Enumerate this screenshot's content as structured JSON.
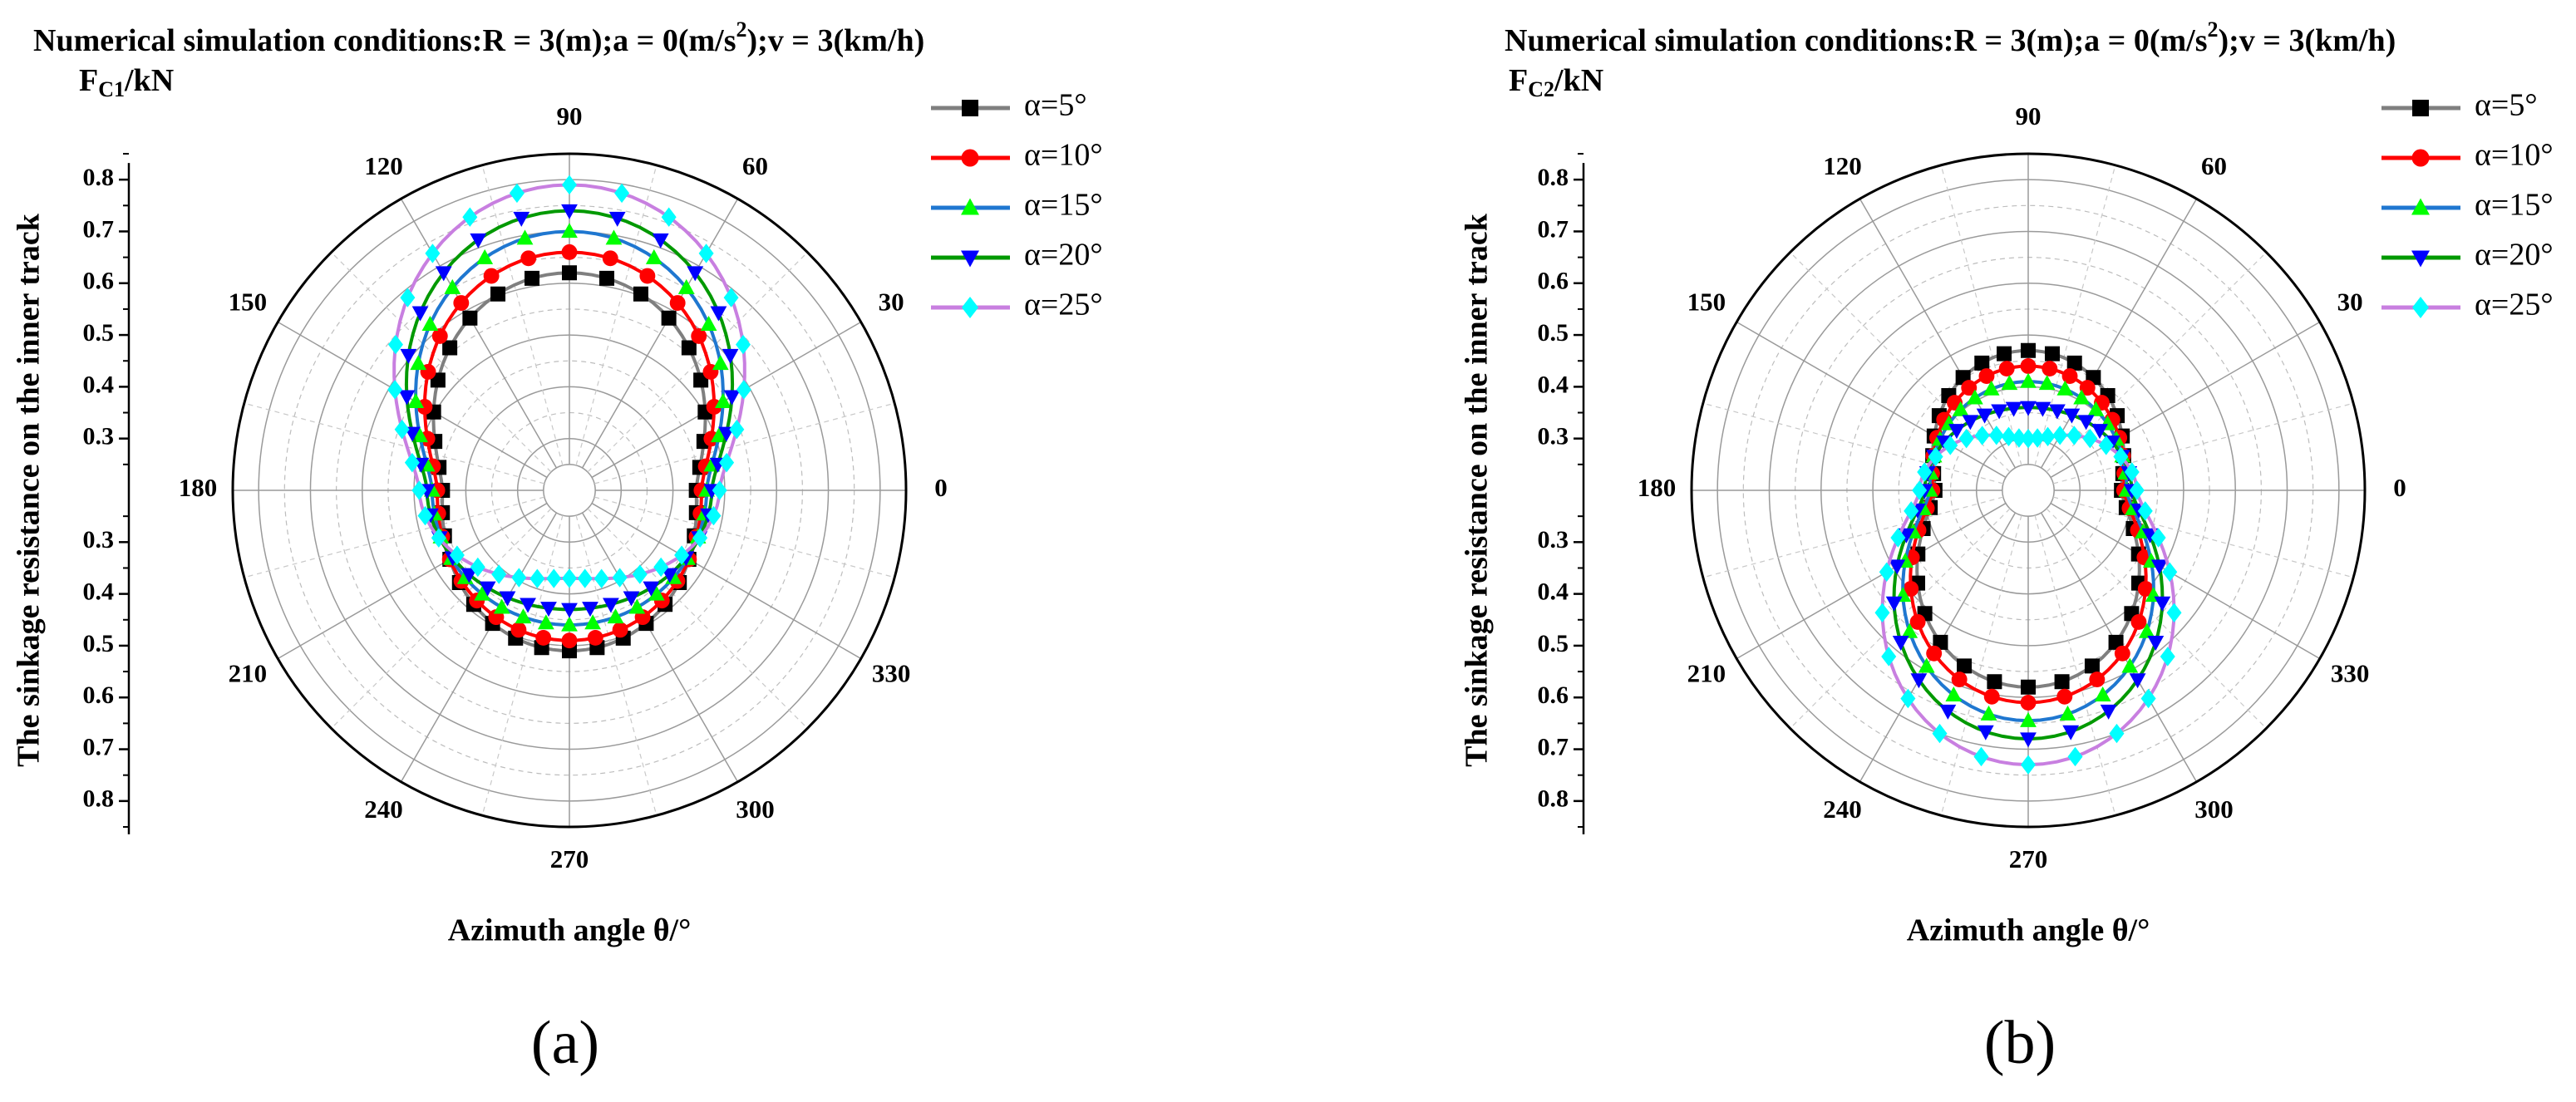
{
  "colors": {
    "alpha5": "#000000",
    "alpha10": "#ff0000",
    "alpha15": "#00ff00",
    "alpha20": "#0000ff",
    "alpha25": "#00ffff",
    "line5": "#7f7f7f",
    "line10": "#ff0000",
    "line15": "#1f77d0",
    "line20": "#009900",
    "line25": "#c87fe0"
  },
  "chart_data": [
    {
      "type": "scatter",
      "subtype": "polar",
      "panel_label": "(a)",
      "title": "Numerical simulation conditions:R = 3(m);a = 0(m/s²);v = 3(km/h)",
      "title_parts": {
        "before": "Numerical simulation conditions:R = 3(m);a = 0(m/s",
        "sup": "2",
        "after": ");v = 3(km/h)"
      },
      "ylabel": "The sinkage resistance on the inner track",
      "unit_label": {
        "main": "F",
        "sub": "C1",
        "rest": "/kN"
      },
      "xlabel": "Azimuth angle θ/°",
      "radial_ticks": [
        "0.3",
        "0.4",
        "0.5",
        "0.6",
        "0.7",
        "0.8"
      ],
      "radial_range": [
        0.2,
        0.85
      ],
      "angle_ticks": [
        "0",
        "30",
        "60",
        "90",
        "120",
        "150",
        "180",
        "210",
        "240",
        "270",
        "300",
        "330"
      ],
      "legend_position": "top-right",
      "grid": true,
      "series": [
        {
          "name": "α=5°",
          "marker": "square",
          "upper_peak": 0.62,
          "side": 0.445,
          "lower_peak": 0.51
        },
        {
          "name": "α=10°",
          "marker": "circle",
          "upper_peak": 0.66,
          "side": 0.455,
          "lower_peak": 0.49
        },
        {
          "name": "α=15°",
          "marker": "triangle-up",
          "upper_peak": 0.7,
          "side": 0.465,
          "lower_peak": 0.46
        },
        {
          "name": "α=20°",
          "marker": "triangle-down",
          "upper_peak": 0.74,
          "side": 0.475,
          "lower_peak": 0.43
        },
        {
          "name": "α=25°",
          "marker": "diamond",
          "upper_peak": 0.79,
          "side": 0.49,
          "lower_peak": 0.37
        }
      ]
    },
    {
      "type": "scatter",
      "subtype": "polar",
      "panel_label": "(b)",
      "title": "Numerical simulation conditions:R = 3(m);a = 0(m/s²);v = 3(km/h)",
      "title_parts": {
        "before": "Numerical simulation conditions:R = 3(m);a = 0(m/s",
        "sup": "2",
        "after": ");v = 3(km/h)"
      },
      "ylabel": "The sinkage resistance on the inner track",
      "unit_label": {
        "main": "F",
        "sub": "C2",
        "rest": "/kN"
      },
      "xlabel": "Azimuth angle θ/°",
      "radial_ticks": [
        "0.3",
        "0.4",
        "0.5",
        "0.6",
        "0.7",
        "0.8"
      ],
      "radial_range": [
        0.2,
        0.85
      ],
      "angle_ticks": [
        "0",
        "30",
        "60",
        "90",
        "120",
        "150",
        "180",
        "210",
        "240",
        "270",
        "300",
        "330"
      ],
      "legend_position": "top-right",
      "grid": true,
      "series": [
        {
          "name": "α=5°",
          "marker": "square",
          "upper_peak": 0.47,
          "side": 0.38,
          "lower_peak": 0.58
        },
        {
          "name": "α=10°",
          "marker": "circle",
          "upper_peak": 0.44,
          "side": 0.385,
          "lower_peak": 0.61
        },
        {
          "name": "α=15°",
          "marker": "triangle-up",
          "upper_peak": 0.41,
          "side": 0.39,
          "lower_peak": 0.645
        },
        {
          "name": "α=20°",
          "marker": "triangle-down",
          "upper_peak": 0.36,
          "side": 0.4,
          "lower_peak": 0.68
        },
        {
          "name": "α=25°",
          "marker": "diamond",
          "upper_peak": 0.3,
          "side": 0.41,
          "lower_peak": 0.73
        }
      ]
    }
  ]
}
